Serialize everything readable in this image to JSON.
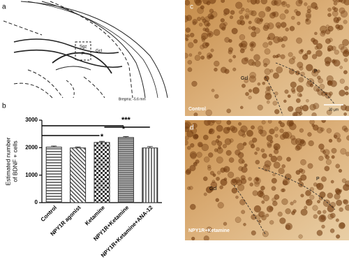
{
  "panels": {
    "a": {
      "label": "a",
      "regions": [
        "Sgz",
        "P",
        "Gcl"
      ],
      "bregma": "Bregma: -5.6 mm"
    },
    "b": {
      "label": "b"
    },
    "c": {
      "label": "c",
      "regions": [
        "Gcl",
        "P"
      ],
      "condition": "Control",
      "scale_bar": "30 µm"
    },
    "d": {
      "label": "d",
      "regions": [
        "Gcl",
        "P"
      ],
      "condition": "NPY1R+Ketamine"
    }
  },
  "chart_data": {
    "type": "bar",
    "categories": [
      "Control",
      "NPY1R agonist",
      "Ketamine",
      "NPY1R+Ketamine",
      "NPY1R+Ketamine+ANA-12"
    ],
    "values": [
      2020,
      1990,
      2190,
      2370,
      1990
    ],
    "errors": [
      40,
      35,
      40,
      35,
      50
    ],
    "color": "#333333",
    "ylabel": [
      "Estimated number",
      "of BDNF + cells"
    ],
    "ylim": [
      0,
      3000
    ],
    "yticks": [
      0,
      1000,
      2000,
      3000
    ],
    "annotations": [
      "***",
      "*",
      "*"
    ]
  }
}
